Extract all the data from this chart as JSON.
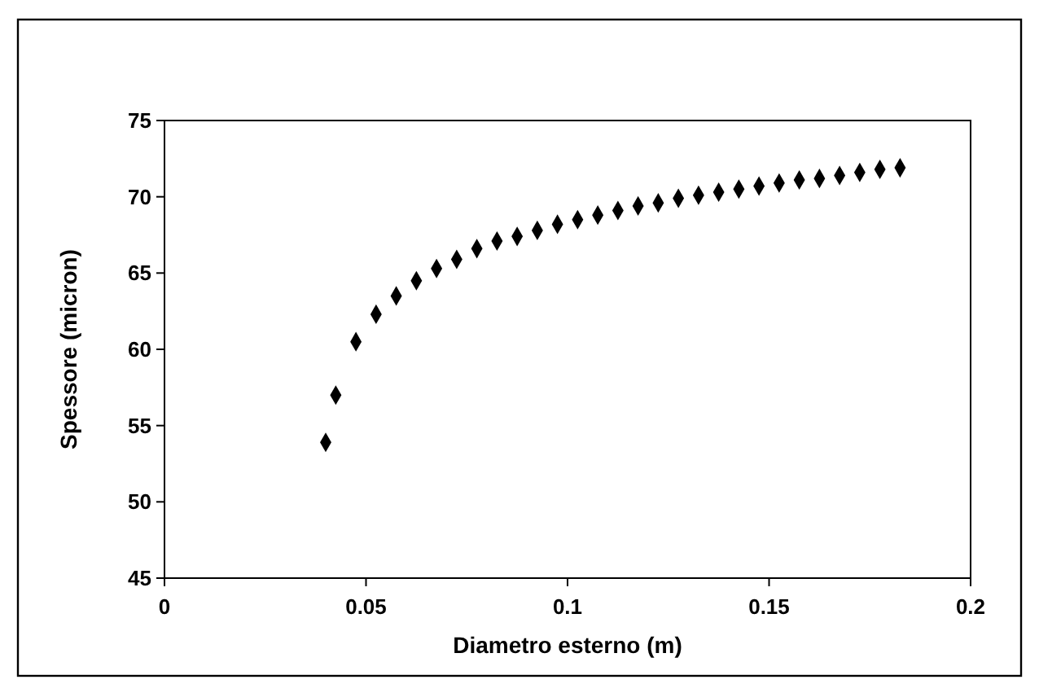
{
  "chart_data": {
    "type": "scatter",
    "xlabel": "Diametro esterno (m)",
    "ylabel": "Spessore (micron)",
    "x": [
      0.04,
      0.0425,
      0.0475,
      0.0525,
      0.0575,
      0.0625,
      0.0675,
      0.0725,
      0.0775,
      0.0825,
      0.0875,
      0.0925,
      0.0975,
      0.1025,
      0.1075,
      0.1125,
      0.1175,
      0.1225,
      0.1275,
      0.1325,
      0.1375,
      0.1425,
      0.1475,
      0.1525,
      0.1575,
      0.1625,
      0.1675,
      0.1725,
      0.1775,
      0.1825
    ],
    "series": [
      {
        "color": "#000000",
        "values": [
          53.9,
          57.0,
          60.5,
          62.3,
          63.5,
          64.5,
          65.3,
          65.9,
          66.6,
          67.1,
          67.4,
          67.8,
          68.2,
          68.5,
          68.8,
          69.1,
          69.4,
          69.6,
          69.9,
          70.1,
          70.3,
          70.5,
          70.7,
          70.9,
          71.1,
          71.2,
          71.4,
          71.6,
          71.8,
          71.9
        ]
      }
    ],
    "xlim": [
      0,
      0.2
    ],
    "xticks": [
      0,
      0.05,
      0.1,
      0.15,
      0.2
    ],
    "ylim": [
      45,
      75
    ],
    "yticks": [
      45,
      50,
      55,
      60,
      65,
      70,
      75
    ],
    "marker": "diamond",
    "grid": false
  }
}
